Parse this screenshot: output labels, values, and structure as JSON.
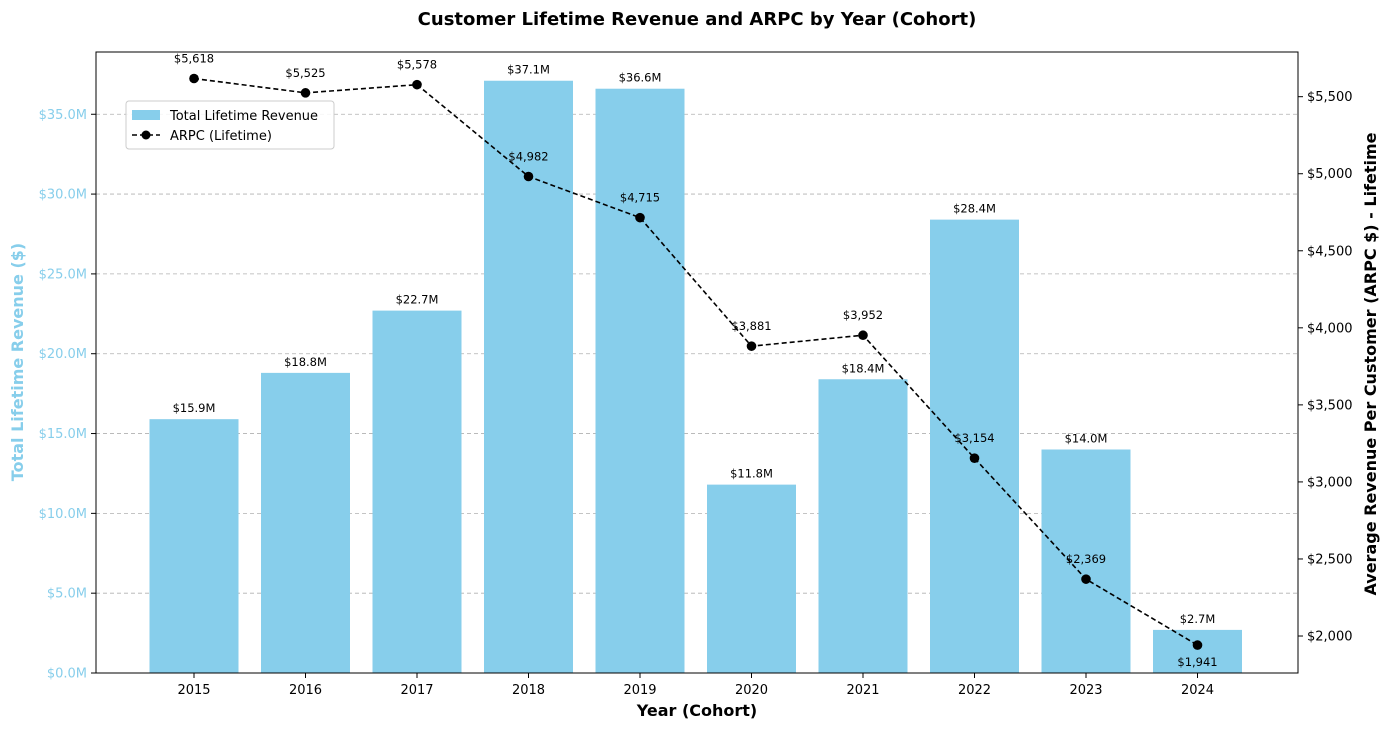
{
  "chart_data": {
    "type": "bar",
    "title": "Customer Lifetime Revenue and ARPC by Year (Cohort)",
    "xlabel": "Year (Cohort)",
    "ylabel": "Total Lifetime Revenue ($)",
    "y2label": "Average Revenue Per Customer (ARPC $) - Lifetime",
    "categories": [
      "2015",
      "2016",
      "2017",
      "2018",
      "2019",
      "2020",
      "2021",
      "2022",
      "2023",
      "2024"
    ],
    "ylim": [
      0,
      38.9
    ],
    "y2lim": [
      1760,
      5790
    ],
    "y_ticks": [
      0,
      5,
      10,
      15,
      20,
      25,
      30,
      35
    ],
    "y_tick_labels": [
      "$0.0M",
      "$5.0M",
      "$10.0M",
      "$15.0M",
      "$20.0M",
      "$25.0M",
      "$30.0M",
      "$35.0M"
    ],
    "y2_ticks": [
      2000,
      2500,
      3000,
      3500,
      4000,
      4500,
      5000,
      5500
    ],
    "y2_tick_labels": [
      "$2,000",
      "$2,500",
      "$3,000",
      "$3,500",
      "$4,000",
      "$4,500",
      "$5,000",
      "$5,500"
    ],
    "grid": "horizontal dashed",
    "legend_placement": "upper-left",
    "series": [
      {
        "name": "Total Lifetime Revenue",
        "kind": "bar",
        "axis": "left",
        "color": "#87ceeb",
        "values": [
          15.9,
          18.8,
          22.7,
          37.1,
          36.6,
          11.8,
          18.4,
          28.4,
          14.0,
          2.7
        ],
        "labels": [
          "$15.9M",
          "$18.8M",
          "$22.7M",
          "$37.1M",
          "$36.6M",
          "$11.8M",
          "$18.4M",
          "$28.4M",
          "$14.0M",
          "$2.7M"
        ]
      },
      {
        "name": "ARPC (Lifetime)",
        "kind": "line",
        "axis": "right",
        "color": "#000000",
        "line_style": "dashed",
        "marker": "circle",
        "values": [
          5618,
          5525,
          5578,
          4982,
          4715,
          3881,
          3952,
          3154,
          2369,
          1941
        ],
        "labels": [
          "$5,618",
          "$5,525",
          "$5,578",
          "$4,982",
          "$4,715",
          "$3,881",
          "$3,952",
          "$3,154",
          "$2,369",
          "$1,941"
        ]
      }
    ],
    "colors": {
      "left_axis": "#87ceeb",
      "right_axis": "#000000",
      "grid": "#b0b0b0"
    }
  }
}
